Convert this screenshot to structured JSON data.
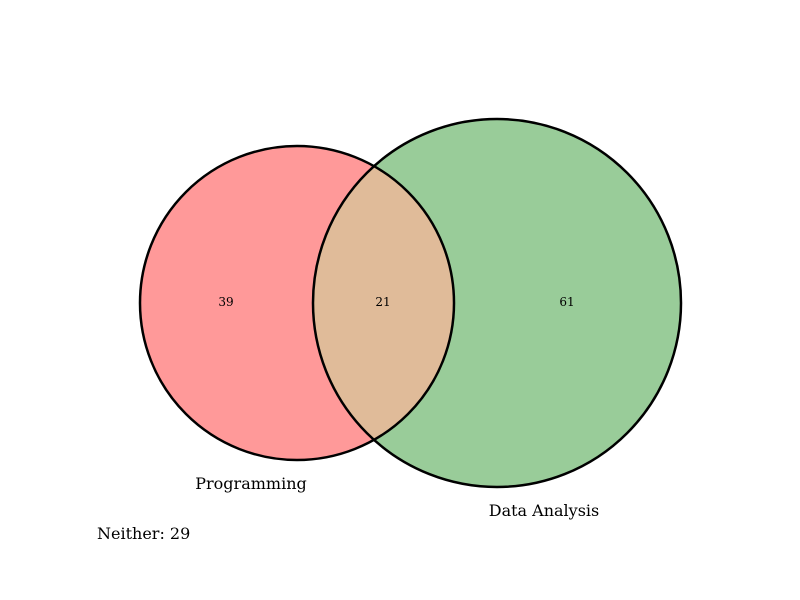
{
  "venn": {
    "sets": [
      {
        "name": "Programming",
        "only_count": "39",
        "fill": "#ff9999"
      },
      {
        "name": "Data Analysis",
        "only_count": "61",
        "fill": "#99cc99"
      }
    ],
    "intersection": {
      "count": "21",
      "fill": "#e0bb99"
    },
    "outline_color": "#000000",
    "neither_label": "Neither: 29"
  }
}
